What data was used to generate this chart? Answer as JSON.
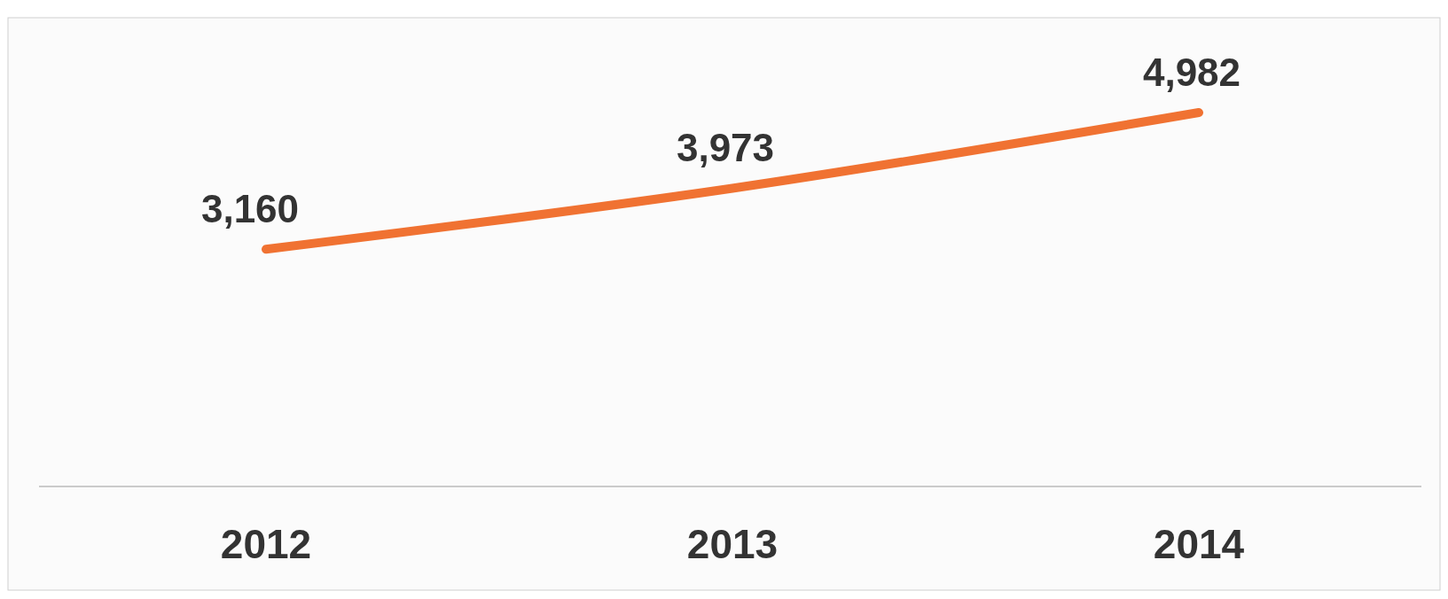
{
  "chart_data": {
    "type": "line",
    "categories": [
      "2012",
      "2013",
      "2014"
    ],
    "series": [
      {
        "color": "#f07232",
        "values": [
          3160,
          3973,
          4982
        ],
        "value_labels": [
          "3,160",
          "3,973",
          "4,982"
        ]
      }
    ],
    "grid": false,
    "marker": "none",
    "line_style": "solid"
  }
}
